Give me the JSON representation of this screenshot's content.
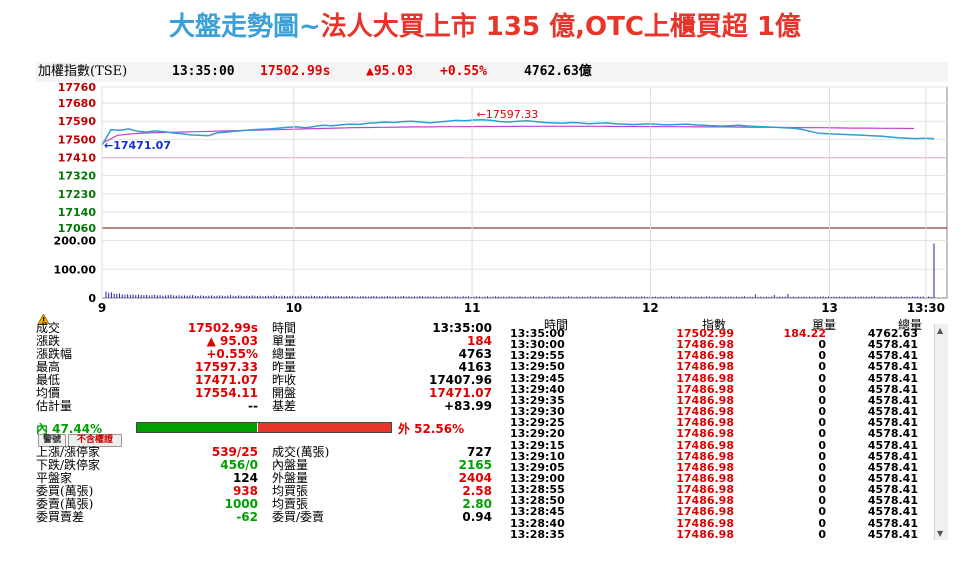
{
  "headline": {
    "part1": "大盤走勢圖~",
    "part2": "法人大買上市 135 億,OTC上櫃買超 1億"
  },
  "infobar": {
    "name": "加權指數(TSE)",
    "time": "13:35:00",
    "price": "17502.99s",
    "change": "▲95.03",
    "pct": "+0.55%",
    "volume": "4762.63億"
  },
  "chart_data": {
    "type": "line",
    "y_ticks": [
      17760,
      17680,
      17590,
      17500,
      17410,
      17320,
      17230,
      17140,
      17060
    ],
    "ylim": [
      17060,
      17760
    ],
    "reference": 17407.96,
    "x_ticks": [
      "9",
      "10",
      "11",
      "12",
      "13",
      "13:30"
    ],
    "high_label": "17597.33",
    "low_label": "17471.07",
    "series": [
      {
        "values": [
          17471.07,
          17548,
          17545,
          17552,
          17540,
          17536,
          17542,
          17538,
          17532,
          17528,
          17522,
          17520,
          17518,
          17532,
          17536,
          17540,
          17544,
          17548,
          17550,
          17552,
          17556,
          17560,
          17562,
          17558,
          17564,
          17570,
          17568,
          17572,
          17576,
          17574,
          17580,
          17583,
          17586,
          17584,
          17588,
          17590,
          17586,
          17582,
          17586,
          17590,
          17594,
          17592,
          17596,
          17597.33,
          17594,
          17588,
          17586,
          17590,
          17592,
          17588,
          17584,
          17582,
          17580,
          17584,
          17582,
          17578,
          17580,
          17582,
          17578,
          17576,
          17574,
          17576,
          17578,
          17574,
          17572,
          17574,
          17576,
          17572,
          17570,
          17568,
          17566,
          17568,
          17570,
          17566,
          17564,
          17562,
          17560,
          17558,
          17556,
          17550,
          17540,
          17530,
          17528,
          17526,
          17524,
          17522,
          17520,
          17518,
          17516,
          17512,
          17508,
          17506,
          17504,
          17506,
          17502.99
        ]
      },
      {
        "values": [
          17480,
          17520,
          17528,
          17532,
          17534,
          17536,
          17538,
          17540,
          17542,
          17544,
          17546,
          17548,
          17550,
          17552,
          17554,
          17556,
          17558,
          17559,
          17560,
          17561,
          17562,
          17562,
          17563,
          17563,
          17564,
          17564,
          17564,
          17565,
          17565,
          17565,
          17565,
          17565,
          17565,
          17564,
          17564,
          17564,
          17563,
          17563,
          17562,
          17562,
          17562,
          17561,
          17560,
          17560,
          17559,
          17558,
          17558,
          17557,
          17556,
          17556,
          17555,
          17555,
          17554.11
        ]
      }
    ],
    "volume_ticks": [
      200,
      100,
      0
    ],
    "volume_ylim": [
      0,
      230
    ],
    "volume": [
      22,
      18,
      20,
      15,
      14,
      16,
      12,
      12,
      13,
      11,
      12,
      10,
      12,
      11,
      10,
      11,
      9,
      10,
      12,
      9,
      10,
      8,
      9,
      10,
      11,
      9,
      8,
      10,
      8,
      9,
      8,
      9,
      10,
      8,
      7,
      9,
      8,
      7,
      8,
      9,
      7,
      8,
      9,
      8,
      7,
      8,
      10,
      8,
      7,
      9,
      8,
      7,
      8,
      7,
      9,
      8,
      7,
      8,
      6,
      7,
      8,
      7,
      9,
      7,
      6,
      8,
      7,
      6,
      7,
      8,
      6,
      7,
      8,
      6,
      7,
      6,
      8,
      7,
      6,
      7,
      6,
      7,
      8,
      6,
      7,
      6,
      7,
      6,
      5,
      7,
      6,
      7,
      6,
      5,
      6,
      7,
      6,
      5,
      6,
      7,
      6,
      5,
      6,
      5,
      7,
      6,
      5,
      6,
      5,
      6,
      7,
      5,
      6,
      5,
      6,
      5,
      7,
      6,
      5,
      6,
      5,
      6,
      5,
      4,
      6,
      5,
      6,
      5,
      4,
      6,
      5,
      4,
      6,
      5,
      6,
      4,
      5,
      6,
      5,
      4,
      5,
      6,
      4,
      5,
      6,
      5,
      4,
      5,
      4,
      6,
      5,
      4,
      5,
      6,
      4,
      5,
      4,
      5,
      6,
      4,
      5,
      4,
      5,
      4,
      6,
      5,
      4,
      5,
      4,
      5,
      4,
      6,
      5,
      4,
      5,
      4,
      5,
      4,
      5,
      6,
      4,
      5,
      4,
      5,
      4,
      5,
      4,
      5,
      6,
      4,
      5,
      4,
      5,
      4,
      5,
      4,
      5,
      4,
      6,
      5,
      4,
      5,
      4,
      5,
      4,
      5,
      4,
      5,
      4,
      6,
      5,
      4,
      5,
      4,
      5,
      4,
      5,
      4,
      5,
      4,
      5,
      4,
      6,
      5,
      4,
      5,
      4,
      5,
      4,
      5,
      4,
      5,
      4,
      5,
      4,
      5,
      6,
      4,
      5,
      4,
      12,
      4,
      5,
      4,
      5,
      4,
      5,
      10,
      4,
      5,
      4,
      5,
      14,
      4,
      5,
      4,
      5,
      4,
      5,
      4,
      5,
      4,
      5,
      4,
      5,
      6,
      4,
      5,
      4,
      5,
      4,
      5,
      4,
      5,
      4,
      5,
      4,
      5,
      4,
      5,
      4,
      5,
      4,
      5,
      6,
      4,
      5,
      4,
      5,
      4,
      5,
      4,
      5,
      4,
      5,
      4,
      5,
      4,
      5,
      4,
      5,
      4,
      5,
      4,
      5,
      4,
      190
    ]
  },
  "stats": {
    "rows": [
      {
        "l1": "成交",
        "v1": "17502.99s",
        "c1": "red",
        "l2": "時間",
        "v2": "13:35:00",
        "c2": "black"
      },
      {
        "l1": "漲跌",
        "v1": "▲ 95.03",
        "c1": "red",
        "l2": "單量",
        "v2": "184",
        "c2": "red"
      },
      {
        "l1": "漲跌幅",
        "v1": "+0.55%",
        "c1": "red",
        "l2": "總量",
        "v2": "4763",
        "c2": "black"
      },
      {
        "l1": "最高",
        "v1": "17597.33",
        "c1": "red",
        "l2": "昨量",
        "v2": "4163",
        "c2": "black"
      },
      {
        "l1": "最低",
        "v1": "17471.07",
        "c1": "red",
        "l2": "昨收",
        "v2": "17407.96",
        "c2": "black"
      },
      {
        "l1": "均價",
        "v1": "17554.11",
        "c1": "red",
        "l2": "開盤",
        "v2": "17471.07",
        "c2": "red"
      },
      {
        "l1": "估計量",
        "v1": "--",
        "c1": "black",
        "l2": "基差",
        "v2": "+83.99",
        "c2": "black"
      }
    ],
    "inner_label": "內 47.44%",
    "outer_label": "外  52.56%",
    "inner_ratio": 0.4744,
    "btn_warning": "警號",
    "btn_rights": "不含權證",
    "rows2": [
      {
        "l1": "上漲/漲停家",
        "v1": "539/25",
        "c1": "red",
        "l2": "成交(萬張)",
        "v2": "727",
        "c2": "black"
      },
      {
        "l1": "下跌/跌停家",
        "v1": "456/0",
        "c1": "green",
        "l2": "內盤量",
        "v2": "2165",
        "c2": "green"
      },
      {
        "l1": "平盤家",
        "v1": "124",
        "c1": "black",
        "l2": "外盤量",
        "v2": "2404",
        "c2": "red"
      },
      {
        "l1": "委買(萬張)",
        "v1": "938",
        "c1": "red",
        "l2": "均買張",
        "v2": "2.58",
        "c2": "red"
      },
      {
        "l1": "委賣(萬張)",
        "v1": "1000",
        "c1": "green",
        "l2": "均賣張",
        "v2": "2.80",
        "c2": "green"
      },
      {
        "l1": "委買賣差",
        "v1": "-62",
        "c1": "green",
        "l2": "委買/委賣",
        "v2": "0.94",
        "c2": "black"
      }
    ]
  },
  "ticks": {
    "headers": [
      "時間",
      "指數",
      "單量",
      "總量"
    ],
    "rows": [
      [
        "13:35:00",
        "17502.99",
        "184.22",
        "4762.63"
      ],
      [
        "13:30:00",
        "17486.98",
        "0",
        "4578.41"
      ],
      [
        "13:29:55",
        "17486.98",
        "0",
        "4578.41"
      ],
      [
        "13:29:50",
        "17486.98",
        "0",
        "4578.41"
      ],
      [
        "13:29:45",
        "17486.98",
        "0",
        "4578.41"
      ],
      [
        "13:29:40",
        "17486.98",
        "0",
        "4578.41"
      ],
      [
        "13:29:35",
        "17486.98",
        "0",
        "4578.41"
      ],
      [
        "13:29:30",
        "17486.98",
        "0",
        "4578.41"
      ],
      [
        "13:29:25",
        "17486.98",
        "0",
        "4578.41"
      ],
      [
        "13:29:20",
        "17486.98",
        "0",
        "4578.41"
      ],
      [
        "13:29:15",
        "17486.98",
        "0",
        "4578.41"
      ],
      [
        "13:29:10",
        "17486.98",
        "0",
        "4578.41"
      ],
      [
        "13:29:05",
        "17486.98",
        "0",
        "4578.41"
      ],
      [
        "13:29:00",
        "17486.98",
        "0",
        "4578.41"
      ],
      [
        "13:28:55",
        "17486.98",
        "0",
        "4578.41"
      ],
      [
        "13:28:50",
        "17486.98",
        "0",
        "4578.41"
      ],
      [
        "13:28:45",
        "17486.98",
        "0",
        "4578.41"
      ],
      [
        "13:28:40",
        "17486.98",
        "0",
        "4578.41"
      ],
      [
        "13:28:35",
        "17486.98",
        "0",
        "4578.41"
      ]
    ]
  },
  "colors": {
    "price_line": "#2e9fd0",
    "avg_line": "#c040d0",
    "red": "#e10000",
    "green": "#00a000",
    "up_tick": "#c00000",
    "down_tick": "#007700",
    "volume_bar": "#2020b0"
  },
  "icons": {
    "warning": "warning-icon",
    "scroll_up": "chevron-up-icon",
    "scroll_down": "chevron-down-icon"
  }
}
